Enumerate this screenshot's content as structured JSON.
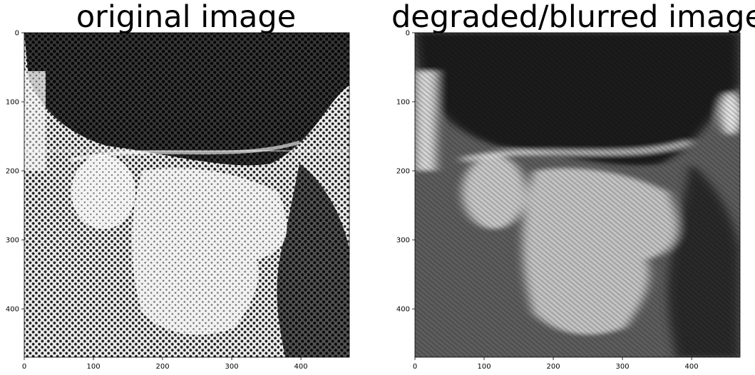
{
  "chart_data": [
    {
      "type": "image",
      "title": "original image",
      "xlim": [
        0,
        470
      ],
      "ylim": [
        470,
        0
      ],
      "xticks": [
        0,
        100,
        200,
        300,
        400
      ],
      "yticks": [
        0,
        100,
        200,
        300,
        400
      ],
      "grid": false,
      "image": {
        "content": "halftone photo of a man's head in profile wearing a cap",
        "colormap": "gray",
        "texture": "sharp halftone dot pattern"
      }
    },
    {
      "type": "image",
      "title": "degraded/blurred image",
      "xlim": [
        0,
        470
      ],
      "ylim": [
        470,
        0
      ],
      "xticks": [
        0,
        100,
        200,
        300,
        400
      ],
      "yticks": [
        0,
        100,
        200,
        300,
        400
      ],
      "grid": false,
      "image": {
        "content": "same head, motion-blurred diagonally",
        "colormap": "gray",
        "texture": "diagonal motion-blur streaks"
      }
    }
  ],
  "colors": {
    "background": "#ffffff",
    "axis": "#000000"
  }
}
